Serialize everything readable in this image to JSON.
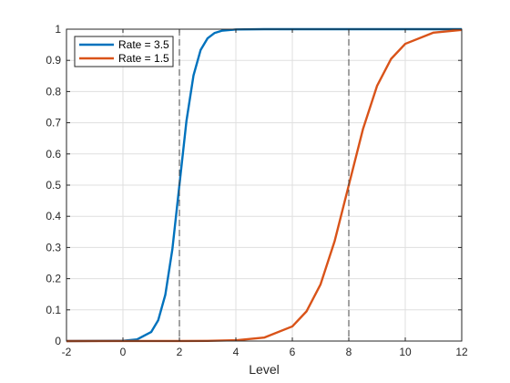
{
  "chart_data": {
    "type": "line",
    "xlabel": "Level",
    "ylabel": "",
    "xlim": [
      -2,
      12
    ],
    "ylim": [
      0,
      1
    ],
    "xticks": [
      "-2",
      "0",
      "2",
      "4",
      "6",
      "8",
      "10",
      "12"
    ],
    "yticks": [
      "0",
      "0.1",
      "0.2",
      "0.3",
      "0.4",
      "0.5",
      "0.6",
      "0.7",
      "0.8",
      "0.9",
      "1"
    ],
    "grid": true,
    "legend_position": "top-left",
    "series": [
      {
        "name": "Rate = 3.5",
        "color": "#0072BD",
        "x": [
          -2,
          0,
          0.5,
          1,
          1.25,
          1.5,
          1.75,
          2,
          2.25,
          2.5,
          2.75,
          3,
          3.25,
          3.5,
          4,
          5,
          12
        ],
        "y": [
          0,
          0.0009,
          0.0052,
          0.029,
          0.067,
          0.148,
          0.294,
          0.5,
          0.706,
          0.852,
          0.933,
          0.971,
          0.988,
          0.995,
          0.999,
          1,
          1
        ]
      },
      {
        "name": "Rate = 1.5",
        "color": "#D95319",
        "x": [
          -2,
          2,
          3,
          4,
          5,
          6,
          6.5,
          7,
          7.5,
          8,
          8.5,
          9,
          9.5,
          10,
          11,
          12
        ],
        "y": [
          0,
          0.0001,
          0.0006,
          0.0025,
          0.011,
          0.047,
          0.095,
          0.182,
          0.321,
          0.5,
          0.679,
          0.818,
          0.905,
          0.953,
          0.989,
          0.9975
        ]
      }
    ],
    "reference_lines": [
      {
        "axis": "x",
        "value": 2,
        "style": "dashed"
      },
      {
        "axis": "x",
        "value": 8,
        "style": "dashed"
      }
    ]
  }
}
